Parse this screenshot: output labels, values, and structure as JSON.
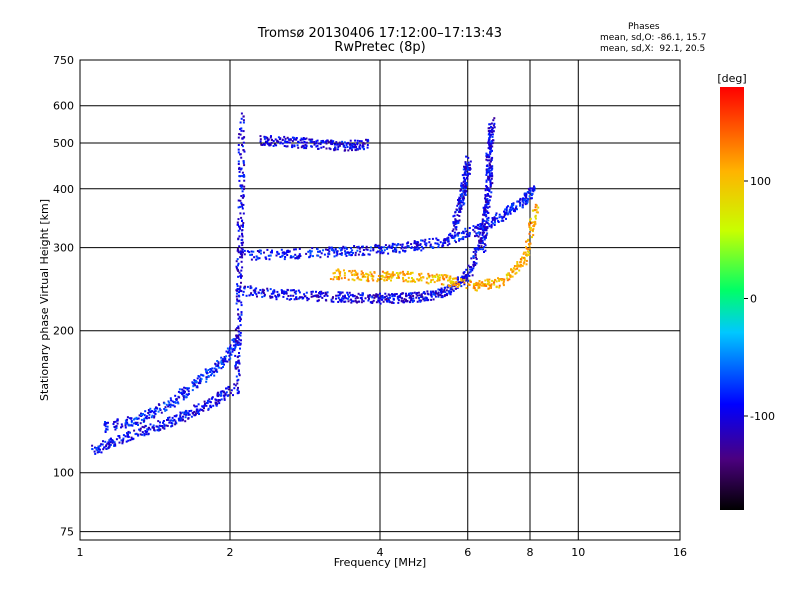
{
  "header": {
    "title_line1": "Tromsø 20130406 17:12:00–17:13:43",
    "title_line2": "RwPretec (8p)",
    "stats_title": "Phases",
    "stats_o": "mean, sd,O: -86.1, 15.7",
    "stats_x": "mean, sd,X:  92.1, 20.5"
  },
  "chart_data": {
    "type": "scatter",
    "xlabel": "Frequency [MHz]",
    "ylabel": "Stationary phase Virtual Height [km]",
    "x_scale": "log",
    "y_scale": "log",
    "xlim": [
      1,
      16
    ],
    "ylim": [
      72,
      750
    ],
    "x_ticks": [
      1,
      2,
      4,
      6,
      8,
      10,
      16
    ],
    "y_ticks": [
      75,
      100,
      200,
      300,
      400,
      500,
      600,
      750
    ],
    "grid": true,
    "colorbar": {
      "label": "[deg]",
      "range": [
        -180,
        180
      ],
      "ticks": [
        100,
        0,
        -100
      ]
    },
    "series": [
      {
        "traces": [
          {
            "x": [
              1.05,
              1.2,
              1.4,
              1.6,
              1.8,
              2.0
            ],
            "y": [
              112,
              118,
              125,
              132,
              140,
              150
            ],
            "phase": -95
          },
          {
            "x": [
              1.1,
              1.3,
              1.5,
              1.7,
              1.9,
              2.05
            ],
            "y": [
              125,
              130,
              140,
              155,
              170,
              190
            ],
            "phase": -85
          },
          {
            "x": [
              2.05,
              2.07,
              2.08,
              2.1,
              2.1
            ],
            "y": [
              150,
              200,
              280,
              400,
              580
            ],
            "phase": -100
          },
          {
            "x": [
              2.1,
              2.5,
              3.0,
              3.5,
              4.0,
              4.5,
              5.0,
              5.5,
              6.0,
              6.4
            ],
            "y": [
              245,
              240,
              238,
              236,
              235,
              236,
              238,
              245,
              265,
              320
            ],
            "phase": -100
          },
          {
            "x": [
              2.1,
              2.6,
              3.2,
              3.8,
              4.5,
              5.3,
              6.1,
              6.8,
              7.6,
              8.1
            ],
            "y": [
              290,
              292,
              295,
              298,
              302,
              310,
              325,
              345,
              375,
              400
            ],
            "phase": -90
          },
          {
            "x": [
              3.2,
              3.8,
              4.5,
              5.3,
              6.2,
              7.0,
              7.8,
              8.2
            ],
            "y": [
              265,
              262,
              262,
              258,
              250,
              255,
              285,
              370
            ],
            "phase": 110
          },
          {
            "x": [
              2.3,
              2.6,
              3.0,
              3.4,
              3.8
            ],
            "y": [
              510,
              505,
              500,
              495,
              500
            ],
            "phase": -100
          },
          {
            "x": [
              6.4,
              6.5,
              6.6,
              6.6,
              6.7
            ],
            "y": [
              300,
              360,
              420,
              480,
              560
            ],
            "phase": -100
          },
          {
            "x": [
              5.6,
              5.8,
              5.9,
              6.0
            ],
            "y": [
              330,
              380,
              420,
              460
            ],
            "phase": -95
          }
        ]
      }
    ]
  }
}
